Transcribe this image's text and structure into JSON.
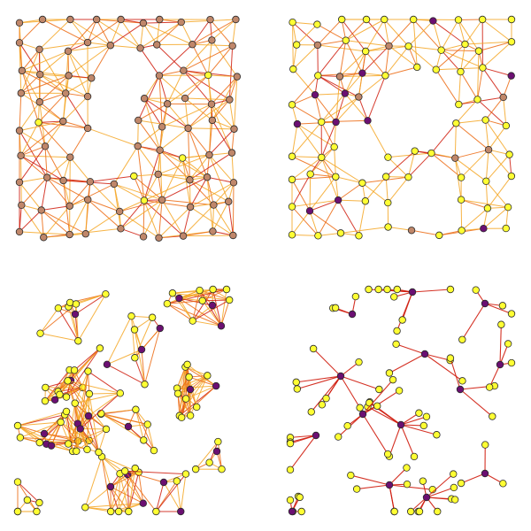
{
  "figure": {
    "background": "#ffffff",
    "panel_count": 4,
    "node_stroke": "#2a2a2a",
    "colors": {
      "edge_light": "#f5a623",
      "edge_mid": "#ec6a12",
      "edge_dark": "#cf1b0c",
      "node_yellow": "#ffff33",
      "node_tan": "#c0876a",
      "node_purple": "#6b0f72"
    }
  }
}
